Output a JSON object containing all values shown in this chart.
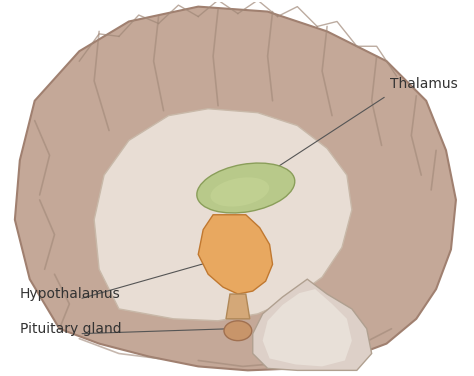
{
  "background_color": "#ffffff",
  "brain_color": "#c4a898",
  "inner_brain_color": "#e8ddd4",
  "thalamus_color": "#b8c98a",
  "hypothalamus_color": "#e8a860",
  "pituitary_color": "#d4956a",
  "brainstem_color": "#ddd0c8",
  "label_thalamus": "Thalamus",
  "label_hypothalamus": "Hypothalamus",
  "label_pituitary": "Pituitary gland",
  "label_color": "#333333",
  "label_fontsize": 10,
  "line_color": "#555555",
  "figsize": [
    4.74,
    3.76
  ],
  "dpi": 100
}
